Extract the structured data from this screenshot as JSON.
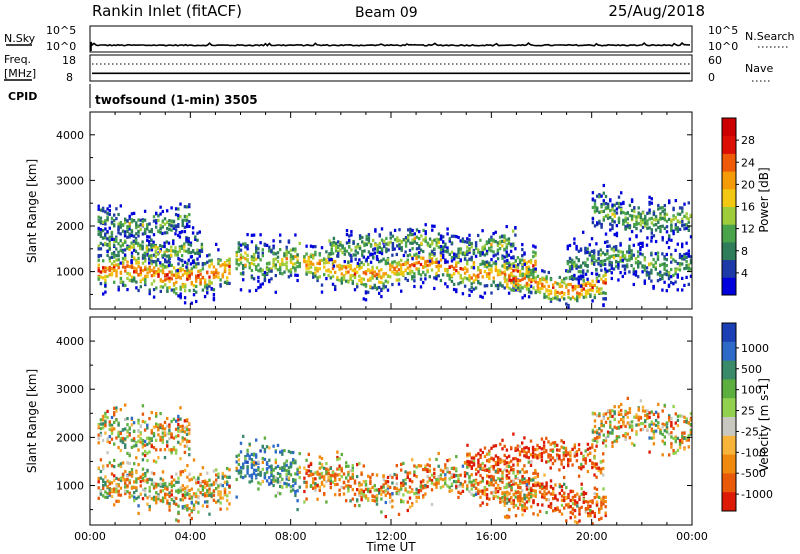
{
  "header": {
    "station": "Rankin Inlet (fitACF)",
    "beam": "Beam 09",
    "date": "25/Aug/2018"
  },
  "chart_data": [
    {
      "type": "line",
      "panel": "nsky-nsearch",
      "left_label": "N.Sky",
      "right_label": "N.Search",
      "left_ticks": [
        "10^5",
        "10^0"
      ],
      "right_ticks": [
        "10^5",
        "10^0"
      ],
      "ylim": [
        1,
        100000
      ],
      "log_scale": true,
      "x_range": [
        "00:00",
        "24:00"
      ],
      "series_level_exponent": 1.2
    },
    {
      "type": "line",
      "panel": "freq-nave",
      "left_label_1": "Freq.",
      "left_label_2": "[MHz]",
      "right_label": "Nave",
      "left_ticks": [
        "18",
        "8"
      ],
      "right_ticks": [
        "60",
        "0"
      ],
      "freq_mhz": 10.8,
      "nave": 40,
      "ylim_left": [
        8,
        18
      ],
      "ylim_right": [
        0,
        60
      ]
    },
    {
      "type": "table",
      "panel": "cpid",
      "label": "CPID",
      "text": "twofsound (1-min) 3505"
    },
    {
      "type": "heatmap",
      "panel": "power",
      "ylabel": "Slant Range [km]",
      "y_ticks": [
        "4000",
        "3000",
        "2000",
        "1000"
      ],
      "ylim": [
        180,
        4500
      ],
      "xlabel": "",
      "x_tick_labels": [
        "00:00",
        "04:00",
        "08:00",
        "12:00",
        "16:00",
        "20:00",
        "00:00"
      ],
      "x_range_hours": [
        0,
        24
      ],
      "colorbar": {
        "label": "Power [dB]",
        "ticks": [
          "28",
          "24",
          "20",
          "16",
          "12",
          "8",
          "4"
        ],
        "range": [
          0,
          32
        ],
        "colors": [
          "#0000dd",
          "#1e3aa8",
          "#2e7c5a",
          "#48a34a",
          "#9fcc3a",
          "#f2c812",
          "#f59b0a",
          "#ee5a07",
          "#dd0f05",
          "#cc0000"
        ]
      },
      "bands": [
        {
          "center_km": 950,
          "width_km": 520,
          "hours": [
            0.3,
            5.6
          ],
          "typical_db": 22
        },
        {
          "center_km": 1550,
          "width_km": 400,
          "hours": [
            0.3,
            4.5
          ],
          "typical_db": 12
        },
        {
          "center_km": 2100,
          "width_km": 380,
          "hours": [
            0.3,
            4.0
          ],
          "typical_db": 10
        },
        {
          "center_km": 1050,
          "width_km": 500,
          "hours": [
            8.5,
            17.8
          ],
          "typical_db": 20
        },
        {
          "center_km": 1600,
          "width_km": 380,
          "hours": [
            9.5,
            17.0
          ],
          "typical_db": 12
        },
        {
          "center_km": 700,
          "width_km": 420,
          "hours": [
            16.5,
            20.6
          ],
          "typical_db": 22
        },
        {
          "center_km": 1200,
          "width_km": 500,
          "hours": [
            19.0,
            24.0
          ],
          "typical_db": 10
        },
        {
          "center_km": 2200,
          "width_km": 500,
          "hours": [
            20.0,
            24.0
          ],
          "typical_db": 12
        },
        {
          "center_km": 1300,
          "width_km": 600,
          "hours": [
            5.8,
            8.4
          ],
          "typical_db": 14
        }
      ]
    },
    {
      "type": "heatmap",
      "panel": "velocity",
      "ylabel": "Slant Range [km]",
      "y_ticks": [
        "4000",
        "3000",
        "2000",
        "1000"
      ],
      "ylim": [
        180,
        4500
      ],
      "xlabel": "Time UT",
      "x_tick_labels": [
        "00:00",
        "04:00",
        "08:00",
        "12:00",
        "16:00",
        "20:00",
        "00:00"
      ],
      "x_range_hours": [
        0,
        24
      ],
      "colorbar": {
        "label": "Velocity [m s-1]",
        "ticks": [
          "1000",
          "500",
          "100",
          "25",
          "-25",
          "-100",
          "-500",
          "-1000"
        ],
        "colors": [
          "#1b3fb5",
          "#2d6ac8",
          "#3a8a6a",
          "#5caf3f",
          "#92d050",
          "#c8c8c0",
          "#f8b43a",
          "#f08a0e",
          "#e85a0a",
          "#dd1a05"
        ]
      },
      "bands": [
        {
          "center_km": 950,
          "width_km": 520,
          "hours": [
            0.3,
            5.6
          ],
          "typical_ms": 0
        },
        {
          "center_km": 2100,
          "width_km": 500,
          "hours": [
            0.3,
            4.0
          ],
          "typical_ms": 0
        },
        {
          "center_km": 1050,
          "width_km": 500,
          "hours": [
            8.5,
            17.8
          ],
          "typical_ms": -120
        },
        {
          "center_km": 1600,
          "width_km": 380,
          "hours": [
            15.0,
            20.5
          ],
          "typical_ms": -400
        },
        {
          "center_km": 700,
          "width_km": 420,
          "hours": [
            16.5,
            20.6
          ],
          "typical_ms": -300
        },
        {
          "center_km": 2200,
          "width_km": 500,
          "hours": [
            20.0,
            24.0
          ],
          "typical_ms": 0
        },
        {
          "center_km": 1300,
          "width_km": 600,
          "hours": [
            5.8,
            8.4
          ],
          "typical_ms": 400
        }
      ]
    }
  ]
}
